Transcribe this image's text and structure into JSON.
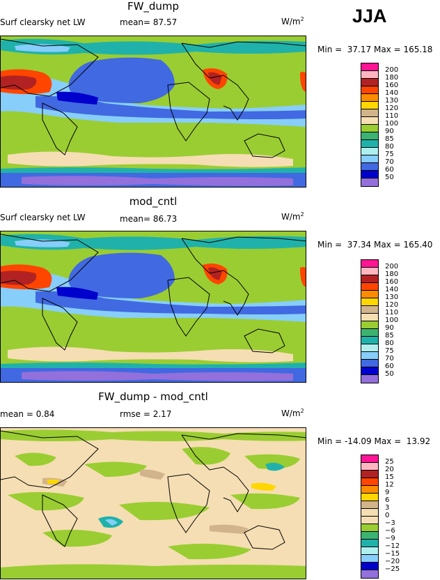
{
  "season": "JJA",
  "panels": [
    {
      "title": "FW_dump",
      "stat_left": "Surf clearsky net LW",
      "stat_mid": "mean=  87.57",
      "units": "W/m",
      "units_exp": "2",
      "minmax": "Min =  37.17 Max = 165.18",
      "scale": "abs"
    },
    {
      "title": "mod_cntl",
      "stat_left": "Surf clearsky net LW",
      "stat_mid": "mean=  86.73",
      "units": "W/m",
      "units_exp": "2",
      "minmax": "Min =  37.34 Max = 165.40",
      "scale": "abs"
    },
    {
      "title": "FW_dump - mod_cntl",
      "stat_left": "mean =   0.84",
      "stat_mid": "rmse =   2.17",
      "units": "W/m",
      "units_exp": "2",
      "minmax": "Min = -14.09 Max =  13.92",
      "scale": "diff"
    }
  ],
  "colorbars": {
    "abs": {
      "labels": [
        "200",
        "180",
        "160",
        "140",
        "130",
        "120",
        "110",
        "100",
        "90",
        "85",
        "80",
        "75",
        "70",
        "60",
        "50"
      ],
      "colors": [
        "#ff1493",
        "#ffb6c1",
        "#b22222",
        "#ff4500",
        "#ff8c00",
        "#ffd700",
        "#d2b48c",
        "#f5deb3",
        "#9acd32",
        "#3cb371",
        "#20b2aa",
        "#afeeee",
        "#87cefa",
        "#4169e1",
        "#0000cd",
        "#9370db"
      ]
    },
    "diff": {
      "labels": [
        "25",
        "20",
        "15",
        "12",
        "9",
        "6",
        "3",
        "0",
        "−3",
        "−6",
        "−9",
        "−12",
        "−15",
        "−20",
        "−25"
      ],
      "colors": [
        "#ff1493",
        "#ffb6c1",
        "#b22222",
        "#ff4500",
        "#ff8c00",
        "#ffd700",
        "#d2b48c",
        "#f5deb3",
        "#f5deb3",
        "#9acd32",
        "#3cb371",
        "#20b2aa",
        "#afeeee",
        "#87cefa",
        "#0000cd",
        "#9370db"
      ]
    }
  }
}
